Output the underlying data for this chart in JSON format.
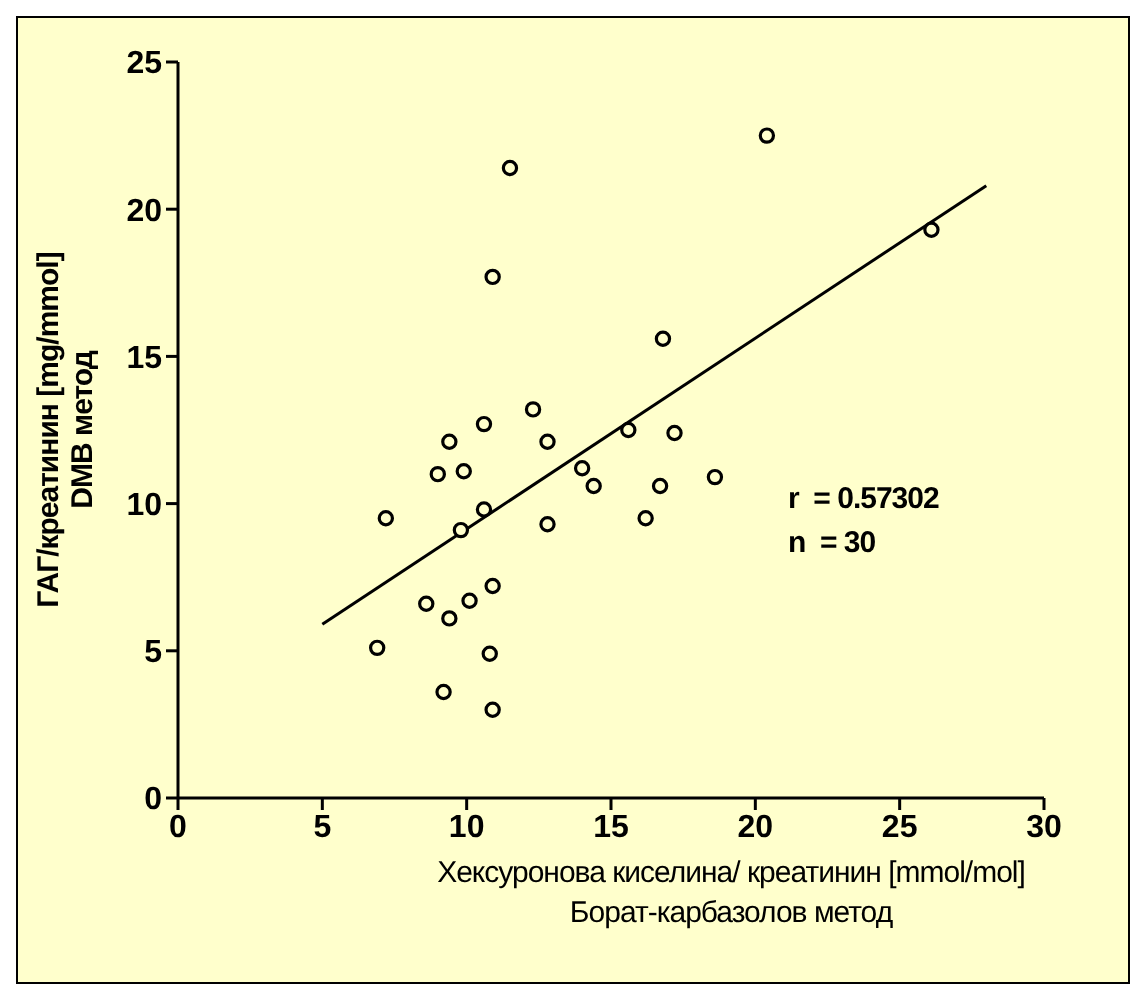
{
  "chart_data": {
    "type": "scatter",
    "xlabel": "Хексуронова киселина/ креатинин [mmol/mol]\nБорат-карбазолов метод",
    "ylabel": "ГАГ/креатинин [mg/mmol]\nDMB метод",
    "annotations": [
      "r  = 0.57302",
      "n  = 30"
    ],
    "xlim": [
      0,
      30
    ],
    "xticks": [
      0,
      5,
      10,
      15,
      20,
      25,
      30
    ],
    "ylim": [
      0,
      25
    ],
    "yticks": [
      0,
      5,
      10,
      15,
      20,
      25
    ],
    "grid": false,
    "marker": "circle",
    "series": [
      {
        "type": "scatter",
        "color": "#000000",
        "x": [
          20.4,
          26.1,
          11.5,
          10.9,
          16.8,
          12.3,
          9.4,
          10.6,
          15.6,
          17.2,
          12.8,
          9.0,
          9.9,
          14.0,
          14.4,
          16.7,
          18.6,
          7.2,
          10.6,
          9.8,
          12.8,
          16.2,
          10.9,
          8.6,
          10.1,
          9.4,
          6.9,
          10.8,
          9.2,
          10.9
        ],
        "values": [
          22.5,
          19.3,
          21.4,
          17.7,
          15.6,
          13.2,
          12.1,
          12.7,
          12.5,
          12.4,
          12.1,
          11.0,
          11.1,
          11.2,
          10.6,
          10.6,
          10.9,
          9.5,
          9.8,
          9.1,
          9.3,
          9.5,
          7.2,
          6.6,
          6.7,
          6.1,
          5.1,
          4.9,
          3.6,
          3.0
        ]
      },
      {
        "type": "line",
        "color": "#000000",
        "marker": "none",
        "x": [
          5,
          28
        ],
        "values": [
          5.9,
          20.8
        ]
      }
    ]
  }
}
